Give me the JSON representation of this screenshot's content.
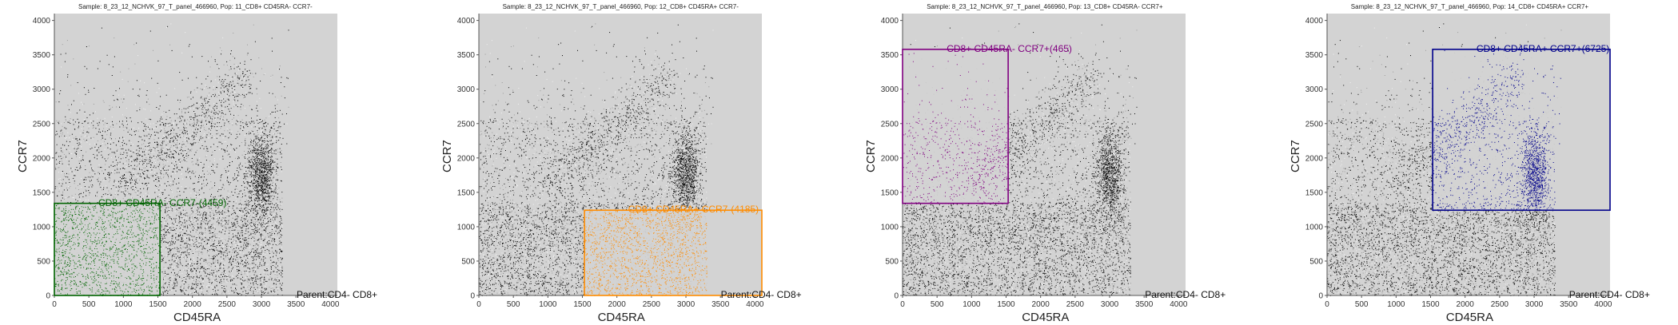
{
  "parent_label": "Parent:CD4- CD8+",
  "chart_data": [
    {
      "type": "scatter",
      "title": "Sample: 8_23_12_NCHVK_97_T_panel_466960, Pop: 11_CD8+ CD45RA- CCR7-",
      "xlabel": "CD45RA",
      "ylabel": "CCR7",
      "xlim": [
        0,
        4100
      ],
      "ylim": [
        0,
        4100
      ],
      "xticks": [
        0,
        500,
        1000,
        1500,
        2000,
        2500,
        3000,
        3500,
        4000
      ],
      "yticks": [
        0,
        500,
        1000,
        1500,
        2000,
        2500,
        3000,
        3500,
        4000
      ],
      "gate": {
        "label": "CD8+ CD45RA- CCR7-(4459)",
        "x_range": [
          0,
          1530
        ],
        "y_range": [
          0,
          1340
        ],
        "color": "#006400"
      }
    },
    {
      "type": "scatter",
      "title": "Sample: 8_23_12_NCHVK_97_T_panel_466960, Pop: 12_CD8+ CD45RA+ CCR7-",
      "xlabel": "CD45RA",
      "ylabel": "CCR7",
      "xlim": [
        0,
        4100
      ],
      "ylim": [
        0,
        4100
      ],
      "xticks": [
        0,
        500,
        1000,
        1500,
        2000,
        2500,
        3000,
        3500,
        4000
      ],
      "yticks": [
        0,
        500,
        1000,
        1500,
        2000,
        2500,
        3000,
        3500,
        4000
      ],
      "gate": {
        "label": "CD8+ CD45RA+ CCR7-(4185)",
        "x_range": [
          1530,
          4100
        ],
        "y_range": [
          0,
          1240
        ],
        "color": "#ff8c00"
      }
    },
    {
      "type": "scatter",
      "title": "Sample: 8_23_12_NCHVK_97_T_panel_466960, Pop: 13_CD8+ CD45RA- CCR7+",
      "xlabel": "CD45RA",
      "ylabel": "CCR7",
      "xlim": [
        0,
        4100
      ],
      "ylim": [
        0,
        4100
      ],
      "xticks": [
        0,
        500,
        1000,
        1500,
        2000,
        2500,
        3000,
        3500,
        4000
      ],
      "yticks": [
        0,
        500,
        1000,
        1500,
        2000,
        2500,
        3000,
        3500,
        4000
      ],
      "gate": {
        "label": "CD8+ CD45RA- CCR7+(465)",
        "x_range": [
          0,
          1530
        ],
        "y_range": [
          1340,
          3580
        ],
        "color": "#800080"
      }
    },
    {
      "type": "scatter",
      "title": "Sample: 8_23_12_NCHVK_97_T_panel_466960, Pop: 14_CD8+ CD45RA+ CCR7+",
      "xlabel": "CD45RA",
      "ylabel": "CCR7",
      "xlim": [
        0,
        4100
      ],
      "ylim": [
        0,
        4100
      ],
      "xticks": [
        0,
        500,
        1000,
        1500,
        2000,
        2500,
        3000,
        3500,
        4000
      ],
      "yticks": [
        0,
        500,
        1000,
        1500,
        2000,
        2500,
        3000,
        3500,
        4000
      ],
      "gate": {
        "label": "CD8+ CD45RA+ CCR7+(6725)",
        "x_range": [
          1530,
          4100
        ],
        "y_range": [
          1240,
          3580
        ],
        "color": "#00008b"
      }
    }
  ]
}
